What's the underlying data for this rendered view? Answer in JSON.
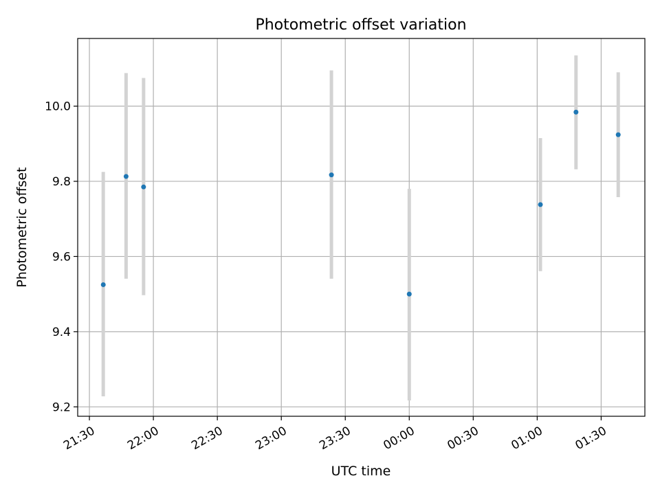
{
  "chart_data": {
    "type": "scatter",
    "title": "Photometric offset variation",
    "xlabel": "UTC time",
    "ylabel": "Photometric offset",
    "x_tick_labels": [
      "21:30",
      "22:00",
      "22:30",
      "23:00",
      "23:30",
      "00:00",
      "00:30",
      "01:00",
      "01:30"
    ],
    "x_tick_minutes": [
      0,
      30,
      60,
      90,
      120,
      150,
      180,
      210,
      240
    ],
    "y_tick_labels": [
      "9.2",
      "9.4",
      "9.6",
      "9.8",
      "10.0"
    ],
    "y_tick_values": [
      9.2,
      9.4,
      9.6,
      9.8,
      10.0
    ],
    "xlim_minutes": [
      -5.5,
      260.5
    ],
    "ylim": [
      9.175,
      10.18
    ],
    "grid": true,
    "series": [
      {
        "marker_color": "#1f77b4",
        "errorbar_color": "#d3d3d3",
        "points": [
          {
            "time": "21:36",
            "minutes": 6.5,
            "y": 9.525,
            "y_low": 9.228,
            "y_high": 9.825
          },
          {
            "time": "21:47",
            "minutes": 17.2,
            "y": 9.813,
            "y_low": 9.541,
            "y_high": 10.088
          },
          {
            "time": "21:55",
            "minutes": 25.4,
            "y": 9.785,
            "y_low": 9.497,
            "y_high": 10.075
          },
          {
            "time": "23:24",
            "minutes": 113.5,
            "y": 9.817,
            "y_low": 9.541,
            "y_high": 10.095
          },
          {
            "time": "00:00",
            "minutes": 150.0,
            "y": 9.5,
            "y_low": 9.217,
            "y_high": 9.78
          },
          {
            "time": "01:01",
            "minutes": 211.5,
            "y": 9.738,
            "y_low": 9.561,
            "y_high": 9.915
          },
          {
            "time": "01:18",
            "minutes": 228.2,
            "y": 9.984,
            "y_low": 9.832,
            "y_high": 10.135
          },
          {
            "time": "01:38",
            "minutes": 248.0,
            "y": 9.924,
            "y_low": 9.758,
            "y_high": 10.09
          }
        ]
      }
    ]
  }
}
